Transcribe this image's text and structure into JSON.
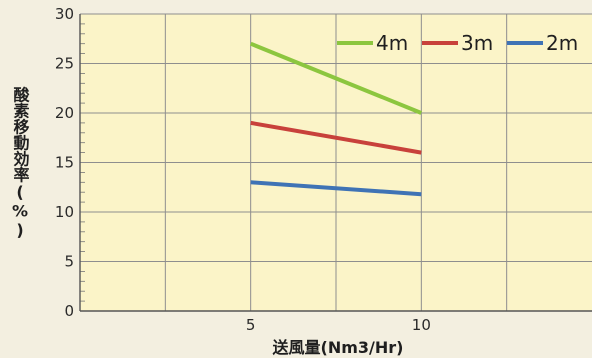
{
  "chart_data": {
    "type": "line",
    "title": "",
    "xlabel": "送風量(Nm3/Hr)",
    "ylabel": "酸素移動効率(%)",
    "xlim": [
      0,
      15
    ],
    "ylim": [
      0,
      30
    ],
    "xticks": [
      5,
      10
    ],
    "yticks": [
      0,
      5,
      10,
      15,
      20,
      25,
      30
    ],
    "grid": true,
    "legend_position": "top-right",
    "x": [
      5,
      10
    ],
    "series": [
      {
        "name": "4m",
        "values": [
          27,
          20
        ],
        "color": "#8cc63f"
      },
      {
        "name": "3m",
        "values": [
          19,
          16
        ],
        "color": "#c8413b"
      },
      {
        "name": "2m",
        "values": [
          13,
          11.8
        ],
        "color": "#3f73b5"
      }
    ]
  },
  "colors": {
    "plot_background": "#fbf4c8",
    "page_background": "#f3efe0",
    "grid": "#8e8e8e"
  }
}
